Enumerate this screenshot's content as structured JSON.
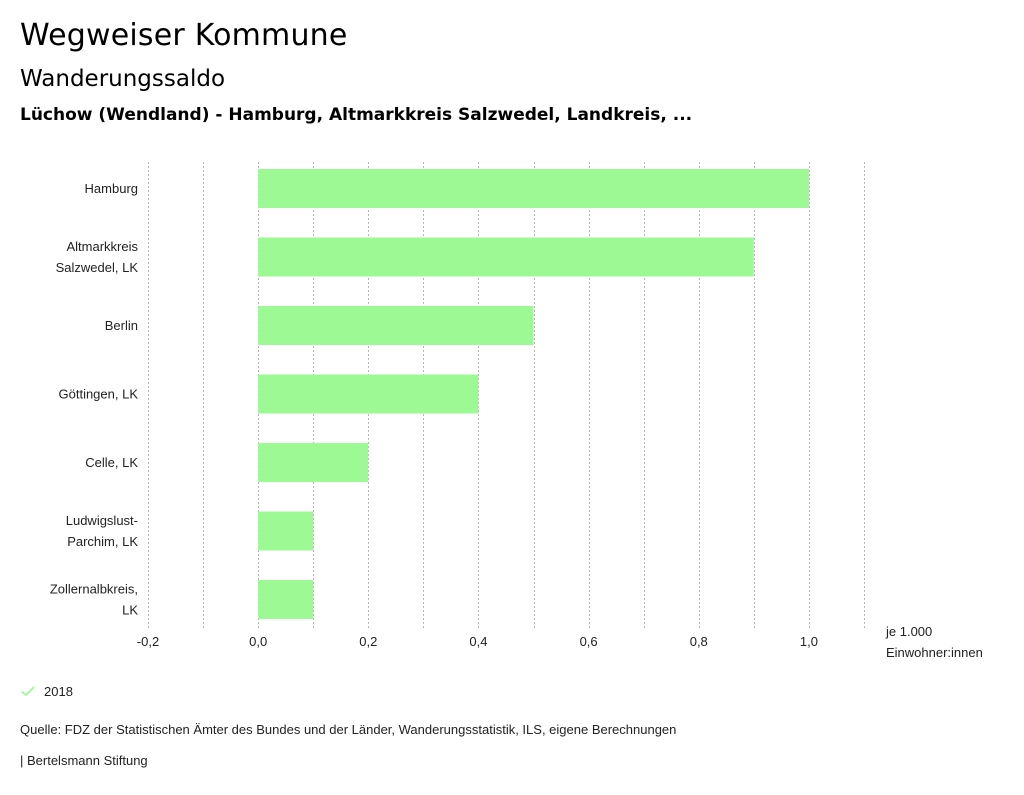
{
  "header": {
    "title": "Wegweiser Kommune",
    "subtitle": "Wanderungssaldo",
    "region": "Lüchow (Wendland) - Hamburg, Altmarkkreis Salzwedel, Landkreis, ..."
  },
  "chart_data": {
    "type": "bar",
    "orientation": "horizontal",
    "title": "Wanderungssaldo",
    "categories": [
      [
        "Hamburg"
      ],
      [
        "Altmarkkreis",
        "Salzwedel, LK"
      ],
      [
        "Berlin"
      ],
      [
        "Göttingen, LK"
      ],
      [
        "Celle, LK"
      ],
      [
        "Ludwigslust-",
        "Parchim, LK"
      ],
      [
        "Zollernalbkreis,",
        "LK"
      ]
    ],
    "series": [
      {
        "name": "2018",
        "values": [
          1.0,
          0.9,
          0.5,
          0.4,
          0.2,
          0.1,
          0.1
        ],
        "color": "#9cf993"
      }
    ],
    "xlim": [
      -0.2,
      1.1
    ],
    "xticks": [
      -0.2,
      0.0,
      0.2,
      0.4,
      0.6,
      0.8,
      1.0
    ],
    "xtick_labels": [
      "-0,2",
      "0,0",
      "0,2",
      "0,4",
      "0,6",
      "0,8",
      "1,0"
    ],
    "gridlines": [
      -0.2,
      -0.1,
      0.0,
      0.1,
      0.2,
      0.3,
      0.4,
      0.5,
      0.6,
      0.7,
      0.8,
      0.9,
      1.0,
      1.1
    ],
    "grid": true,
    "xlabel": "je 1.000 Einwohner:innen",
    "ylabel": "",
    "legend_position": "bottom-left"
  },
  "axis": {
    "unit_line1": "je 1.000",
    "unit_line2": "Einwohner:innen"
  },
  "legend": {
    "items": [
      {
        "label": "2018",
        "color": "#9cf993",
        "icon": "check-icon"
      }
    ]
  },
  "footer": {
    "source": "Quelle: FDZ der Statistischen Ämter des Bundes und der Länder, Wanderungsstatistik, ILS, eigene Berechnungen",
    "brand": "| Bertelsmann Stiftung"
  }
}
